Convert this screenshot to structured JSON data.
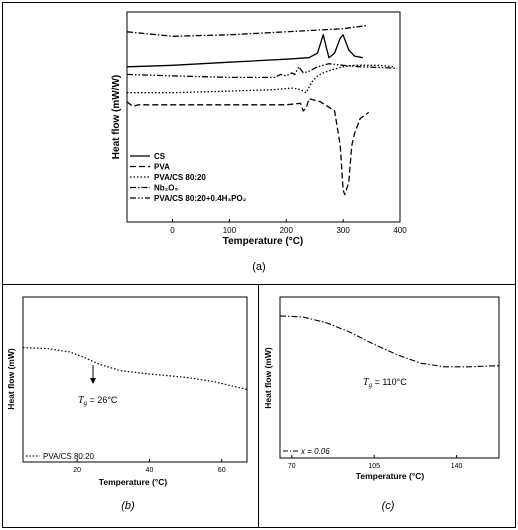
{
  "panels": {
    "a": {
      "caption": "(a)"
    },
    "b": {
      "caption": "(b)"
    },
    "c": {
      "caption": "(c)"
    }
  },
  "chart_data": [
    {
      "id": "a",
      "type": "line",
      "xlabel": "Temperature (°C)",
      "ylabel": "Heat flow (mW/W)",
      "xlim": [
        -80,
        400
      ],
      "xticks": [
        "0",
        "100",
        "200",
        "300",
        "400"
      ],
      "xtick_values": [
        0,
        100,
        200,
        300,
        400
      ],
      "ylim": [
        0,
        1
      ],
      "yticks_shown": false,
      "legend_position": "bottom-left",
      "series": [
        {
          "name": "CS",
          "dash": "solid",
          "x": [
            -80,
            0,
            100,
            200,
            240,
            255,
            265,
            275,
            285,
            295,
            300,
            310,
            320,
            335
          ],
          "y": [
            0.86,
            0.865,
            0.875,
            0.885,
            0.89,
            0.905,
            0.965,
            0.89,
            0.905,
            0.955,
            0.965,
            0.915,
            0.895,
            0.89
          ]
        },
        {
          "name": "PVA",
          "dash": "longdash",
          "x": [
            -80,
            -70,
            -60,
            0,
            100,
            200,
            225,
            230,
            235,
            240,
            260,
            285,
            295,
            300,
            303,
            310,
            315,
            320,
            330,
            345
          ],
          "y": [
            0.745,
            0.73,
            0.735,
            0.735,
            0.735,
            0.735,
            0.74,
            0.715,
            0.725,
            0.755,
            0.745,
            0.715,
            0.6,
            0.455,
            0.44,
            0.48,
            0.6,
            0.64,
            0.69,
            0.71
          ]
        },
        {
          "name": "PVA/CS 80:20",
          "dash": "dotted",
          "x": [
            -80,
            0,
            100,
            180,
            210,
            225,
            235,
            245,
            255,
            265,
            280,
            300,
            320,
            340,
            360,
            390
          ],
          "y": [
            0.775,
            0.775,
            0.78,
            0.785,
            0.79,
            0.785,
            0.775,
            0.81,
            0.83,
            0.84,
            0.85,
            0.86,
            0.865,
            0.865,
            0.865,
            0.86
          ]
        },
        {
          "name": "Nb₂O₅",
          "dash": "dashdot",
          "x": [
            -80,
            0,
            100,
            200,
            300,
            340
          ],
          "y": [
            0.975,
            0.96,
            0.965,
            0.975,
            0.985,
            0.995
          ]
        },
        {
          "name": "PVA/CS 80:20+0.4H₃PO₂",
          "dash": "dashdotdot",
          "x": [
            -80,
            0,
            100,
            180,
            190,
            200,
            210,
            215,
            222,
            230,
            240,
            255,
            275,
            300,
            330,
            360,
            395
          ],
          "y": [
            0.835,
            0.83,
            0.825,
            0.825,
            0.835,
            0.83,
            0.84,
            0.835,
            0.86,
            0.84,
            0.845,
            0.86,
            0.87,
            0.865,
            0.86,
            0.858,
            0.855
          ]
        }
      ]
    },
    {
      "id": "b",
      "type": "line",
      "xlabel": "Temperature (°C)",
      "ylabel": "Heat flow (mW)",
      "xlim": [
        5,
        67
      ],
      "xticks": [
        "20",
        "40",
        "60"
      ],
      "xtick_values": [
        20,
        40,
        60
      ],
      "annotation": {
        "prefix": "T",
        "sub": "g",
        "text": " = 26°C",
        "x": 26
      },
      "series": [
        {
          "name": "PVA/CS 80:20",
          "dash": "dotted",
          "x": [
            5,
            12,
            18,
            22,
            26,
            32,
            40,
            50,
            58,
            63,
            67
          ],
          "y": [
            0.82,
            0.815,
            0.8,
            0.775,
            0.745,
            0.715,
            0.7,
            0.685,
            0.665,
            0.645,
            0.63
          ]
        }
      ]
    },
    {
      "id": "c",
      "type": "line",
      "xlabel": "Temperature (°C)",
      "ylabel": "Heat flow (mW)",
      "xlim": [
        65,
        158
      ],
      "xticks": [
        "70",
        "105",
        "140"
      ],
      "xtick_values": [
        70,
        105,
        140
      ],
      "annotation": {
        "prefix": "T",
        "sub": "g",
        "text": " = 110°C",
        "x": 110
      },
      "series": [
        {
          "name": "x = 0.06",
          "dash": "dashdot",
          "x": [
            65,
            75,
            85,
            95,
            105,
            115,
            125,
            135,
            145,
            158
          ],
          "y": [
            0.9,
            0.895,
            0.87,
            0.83,
            0.78,
            0.735,
            0.7,
            0.685,
            0.685,
            0.69
          ]
        }
      ]
    }
  ]
}
